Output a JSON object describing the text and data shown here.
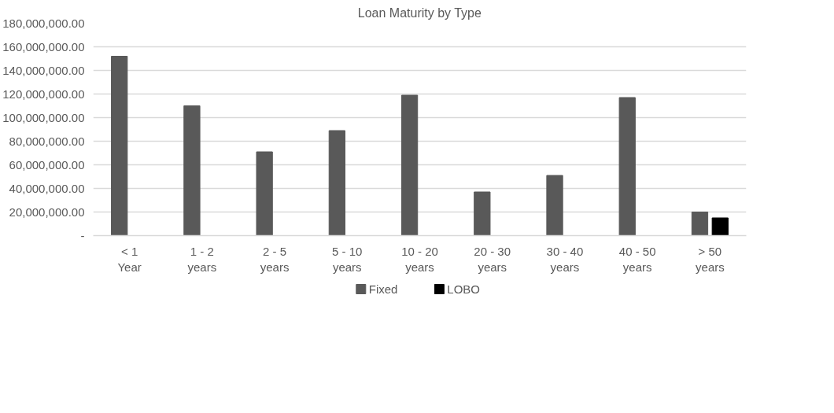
{
  "chart_data": {
    "type": "bar",
    "title": "Loan Maturity by Type",
    "categories": [
      "< 1 Year",
      "1 - 2 years",
      "2 - 5 years",
      "5 - 10 years",
      "10 - 20 years",
      "20 - 30 years",
      "30 - 40 years",
      "40 - 50 years",
      "> 50 years"
    ],
    "series": [
      {
        "name": "Fixed",
        "color": "#595959",
        "values": [
          152000000,
          110000000,
          71000000,
          89000000,
          119000000,
          37000000,
          51000000,
          117000000,
          20000000
        ]
      },
      {
        "name": "LOBO",
        "color": "#000000",
        "values": [
          null,
          null,
          null,
          null,
          null,
          null,
          null,
          null,
          15000000
        ]
      }
    ],
    "ylim": [
      0,
      180000000
    ],
    "yticks": [
      {
        "value": 0,
        "label": "-"
      },
      {
        "value": 20000000,
        "label": "20,000,000.00"
      },
      {
        "value": 40000000,
        "label": "40,000,000.00"
      },
      {
        "value": 60000000,
        "label": "60,000,000.00"
      },
      {
        "value": 80000000,
        "label": "80,000,000.00"
      },
      {
        "value": 100000000,
        "label": "100,000,000.00"
      },
      {
        "value": 120000000,
        "label": "120,000,000.00"
      },
      {
        "value": 140000000,
        "label": "140,000,000.00"
      },
      {
        "value": 160000000,
        "label": "160,000,000.00"
      },
      {
        "value": 180000000,
        "label": "180,000,000.00"
      }
    ],
    "grid": "y",
    "legend": "bottom"
  }
}
